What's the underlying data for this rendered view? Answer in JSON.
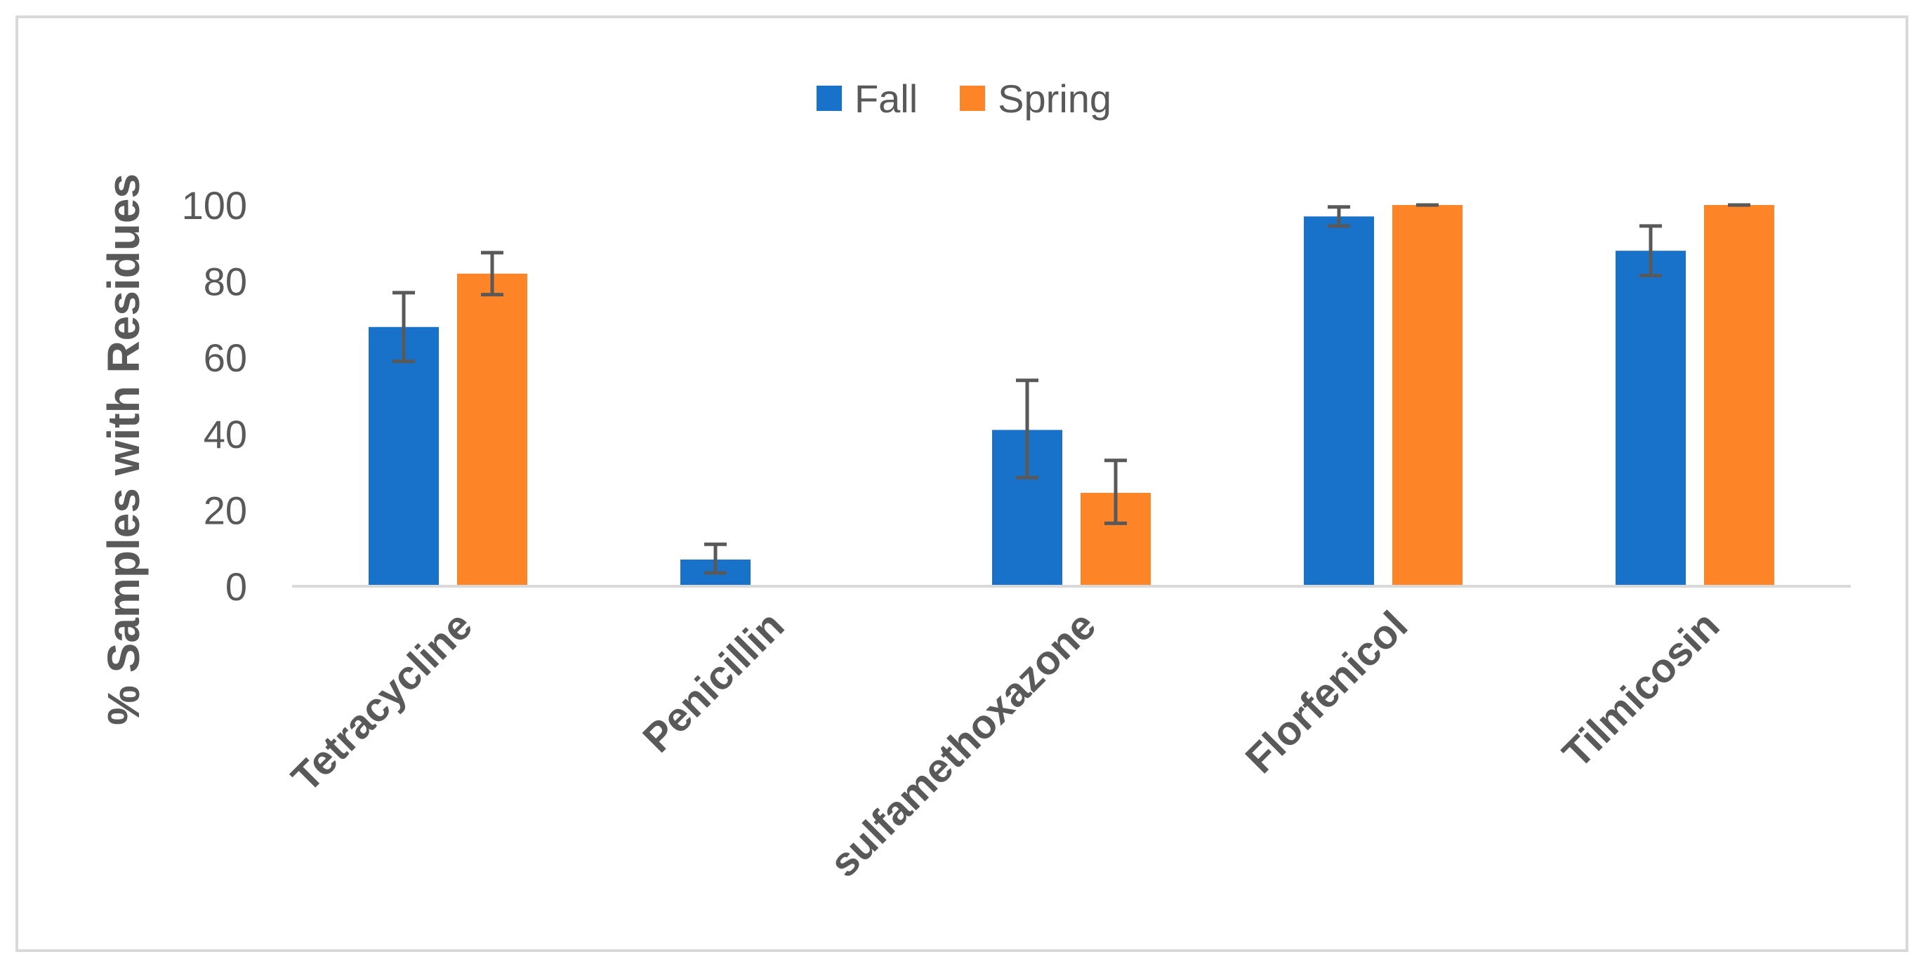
{
  "chart_data": {
    "type": "bar",
    "categories": [
      "Tetracycline",
      "Penicillin",
      "sulfamethoxazone",
      "Florfenicol",
      "Tilmicosin"
    ],
    "series": [
      {
        "name": "Fall",
        "color": "#1872c9",
        "values": [
          68,
          7,
          41,
          97,
          88
        ],
        "error": [
          [
            59,
            77
          ],
          [
            3.5,
            11
          ],
          [
            28.5,
            54
          ],
          [
            94.5,
            99.5
          ],
          [
            81.5,
            94.5
          ]
        ]
      },
      {
        "name": "Spring",
        "color": "#fe8428",
        "values": [
          82,
          0,
          24.5,
          100,
          100
        ],
        "error": [
          [
            76.5,
            87.5
          ],
          null,
          [
            16.5,
            33
          ],
          [
            100,
            100
          ],
          [
            100,
            100
          ]
        ]
      }
    ],
    "title": "",
    "xlabel": "",
    "ylabel": "% Samples with Residues",
    "ylim": [
      0,
      100
    ],
    "yticks": [
      0,
      20,
      40,
      60,
      80,
      100
    ],
    "grid": false,
    "legend": "top-center",
    "error_bar_color": "#595959",
    "axis_color": "#d9d9d9"
  }
}
